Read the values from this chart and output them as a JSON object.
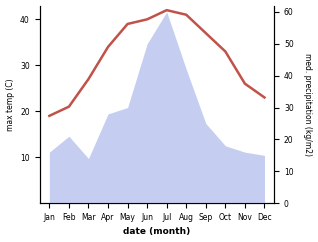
{
  "months": [
    "Jan",
    "Feb",
    "Mar",
    "Apr",
    "May",
    "Jun",
    "Jul",
    "Aug",
    "Sep",
    "Oct",
    "Nov",
    "Dec"
  ],
  "month_positions": [
    1,
    2,
    3,
    4,
    5,
    6,
    7,
    8,
    9,
    10,
    11,
    12
  ],
  "temperature": [
    19,
    21,
    27,
    34,
    39,
    40,
    42,
    41,
    37,
    33,
    26,
    23
  ],
  "precipitation": [
    16,
    21,
    14,
    28,
    30,
    50,
    60,
    42,
    25,
    18,
    16,
    15
  ],
  "temp_color": "#c0524a",
  "precip_fill_color": "#c5cdf0",
  "ylabel_left": "max temp (C)",
  "ylabel_right": "med. precipitation (kg/m2)",
  "xlabel": "date (month)",
  "ylim_left": [
    0,
    43
  ],
  "ylim_right": [
    0,
    62
  ],
  "yticks_left": [
    10,
    20,
    30,
    40
  ],
  "yticks_right": [
    0,
    10,
    20,
    30,
    40,
    50,
    60
  ],
  "figsize": [
    3.18,
    2.42
  ],
  "dpi": 100
}
